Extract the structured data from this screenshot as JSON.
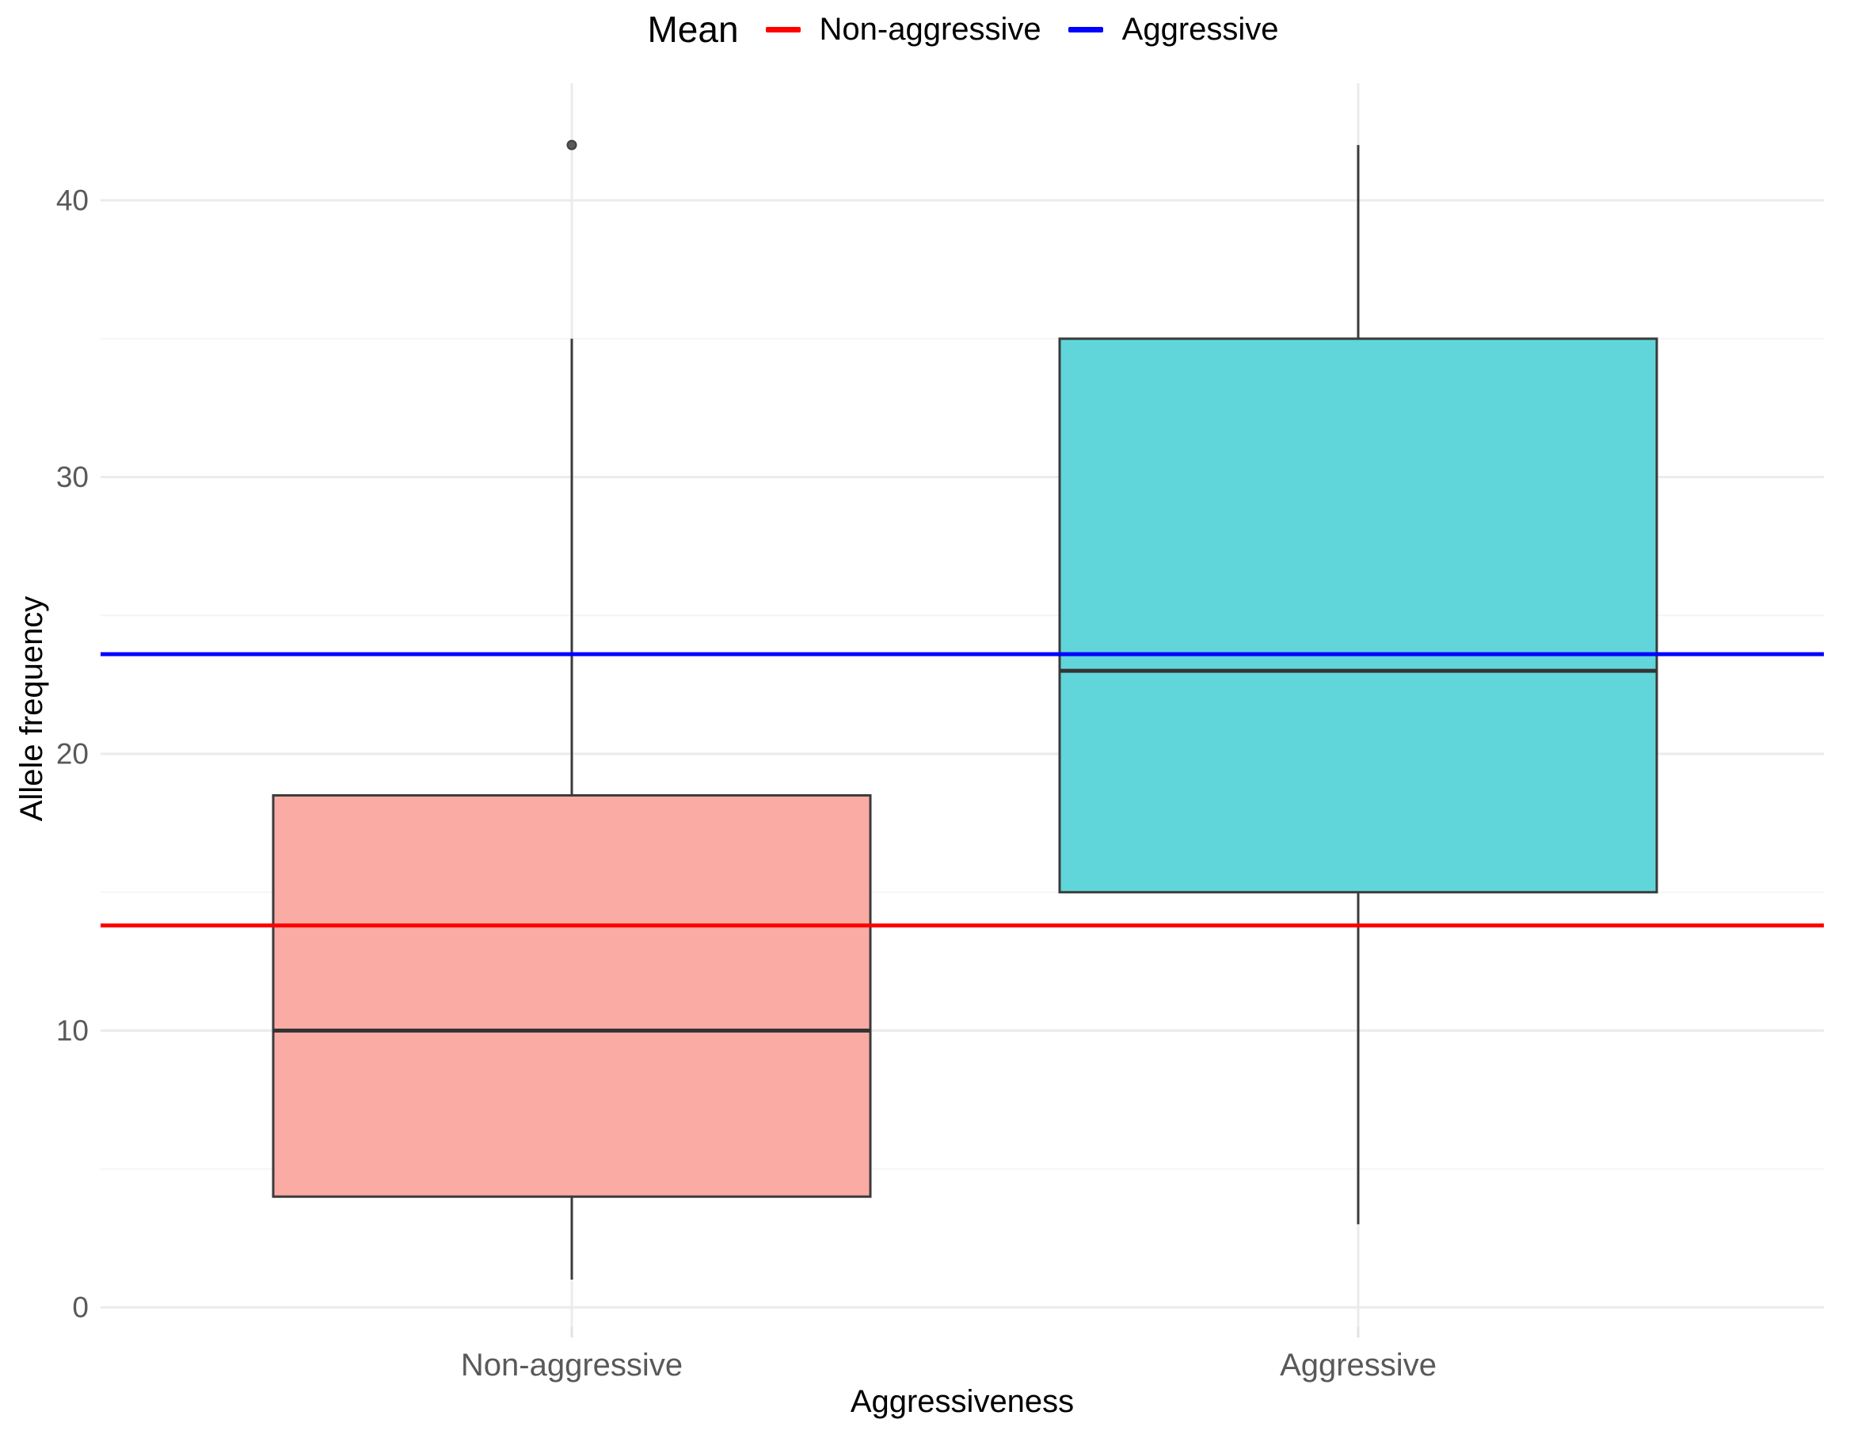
{
  "legend": {
    "title": "Mean",
    "items": [
      {
        "label": "Non-aggressive",
        "color": "#FF0000"
      },
      {
        "label": "Aggressive",
        "color": "#0000FF"
      }
    ]
  },
  "chart_data": {
    "type": "boxplot",
    "title": "",
    "xlabel": "Aggressiveness",
    "ylabel": "Allele frequency",
    "categories": [
      "Non-aggressive",
      "Aggressive"
    ],
    "yticks": [
      0,
      10,
      20,
      30,
      40
    ],
    "yticks_minor": [
      5,
      15,
      25,
      35
    ],
    "ylim": [
      -0.7,
      44.2
    ],
    "grid": true,
    "legend_position": "top",
    "boxes": [
      {
        "category": "Non-aggressive",
        "whisker_low": 1,
        "q1": 4,
        "median": 10,
        "q3": 18.5,
        "whisker_high": 35,
        "outliers": [
          42
        ],
        "fill": "#FAABA4"
      },
      {
        "category": "Aggressive",
        "whisker_low": 3,
        "q1": 15,
        "median": 23,
        "q3": 35,
        "whisker_high": 42,
        "outliers": [],
        "fill": "#60D6DA"
      }
    ],
    "mean_lines": [
      {
        "label": "Non-aggressive",
        "value": 13.8,
        "color": "#FF0000"
      },
      {
        "label": "Aggressive",
        "value": 23.6,
        "color": "#0000FF"
      }
    ],
    "style": {
      "box_border": "#3B3B3B",
      "median_color": "#343434",
      "outlier_color": "#5A5A5A",
      "grid_major": "#EBEBEB",
      "grid_minor": "#F5F5F5",
      "axis_tick_color": "#E2E2E2",
      "tick_label_color": "#595959",
      "axis_title_color": "#000000"
    }
  }
}
